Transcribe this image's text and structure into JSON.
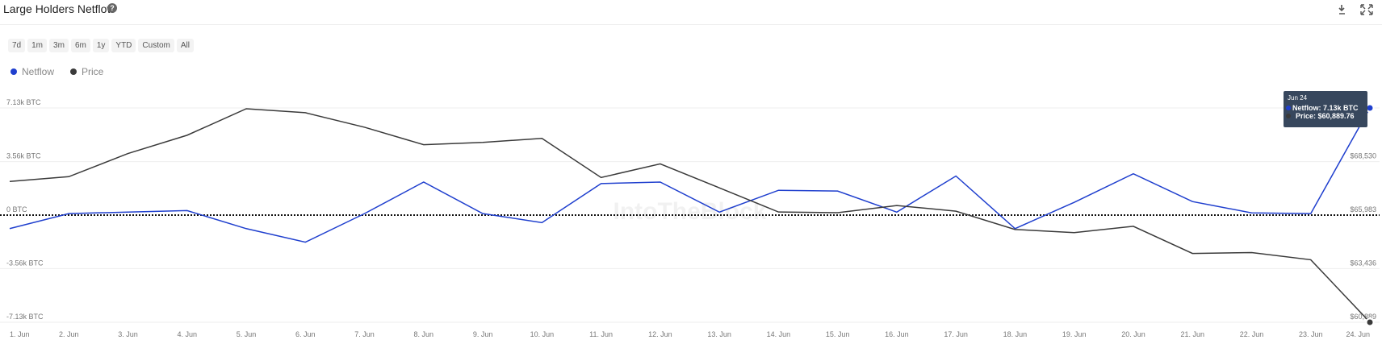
{
  "header": {
    "title": "Large Holders Netflow"
  },
  "ranges": [
    "7d",
    "1m",
    "3m",
    "6m",
    "1y",
    "YTD",
    "Custom",
    "All"
  ],
  "watermark": "IntoTheBlock",
  "chart_data": {
    "type": "line",
    "categories": [
      "1. Jun",
      "2. Jun",
      "3. Jun",
      "4. Jun",
      "5. Jun",
      "6. Jun",
      "7. Jun",
      "8. Jun",
      "9. Jun",
      "10. Jun",
      "11. Jun",
      "12. Jun",
      "13. Jun",
      "14. Jun",
      "15. Jun",
      "16. Jun",
      "17. Jun",
      "18. Jun",
      "19. Jun",
      "20. Jun",
      "21. Jun",
      "22. Jun",
      "23. Jun",
      "24. Jun"
    ],
    "series": [
      {
        "name": "Netflow",
        "color": "#1f3fce",
        "values": [
          -900,
          100,
          200,
          300,
          -900,
          -1800,
          100,
          2200,
          100,
          -500,
          2100,
          2200,
          200,
          1650,
          1600,
          200,
          2600,
          -900,
          850,
          2750,
          900,
          150,
          100,
          7130
        ]
      },
      {
        "name": "Price",
        "color": "#3a3a3a",
        "axis": "y2",
        "values": [
          67580,
          67810,
          68910,
          69780,
          71040,
          70850,
          70160,
          69330,
          69440,
          69630,
          67770,
          68420,
          67280,
          66130,
          66100,
          66440,
          66170,
          65300,
          65150,
          65450,
          64160,
          64200,
          63860,
          60889.76
        ]
      }
    ],
    "ylim": [
      -7130,
      7130
    ],
    "yticks": [
      {
        "value": 7130,
        "label": "7.13k BTC"
      },
      {
        "value": 3560,
        "label": "3.56k BTC"
      },
      {
        "value": 0,
        "label": "0 BTC"
      },
      {
        "value": -3560,
        "label": "-3.56k BTC"
      },
      {
        "value": -7130,
        "label": "-7.13k BTC"
      }
    ],
    "y2lim": [
      60889,
      71077
    ],
    "y2ticks": [
      {
        "value": 68530,
        "label": "$68,530"
      },
      {
        "value": 65983,
        "label": "$65,983"
      },
      {
        "value": 63436,
        "label": "$63,436"
      },
      {
        "value": 60889,
        "label": "$60,889"
      }
    ],
    "grid": true,
    "tooltip": {
      "title": "Jun 24",
      "lines": [
        "Netflow: 7.13k BTC",
        "Price: $60,889.76"
      ]
    }
  }
}
